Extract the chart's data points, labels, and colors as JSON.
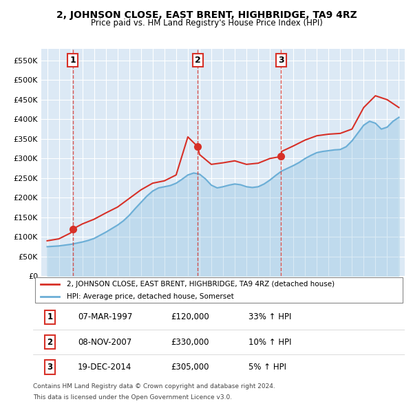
{
  "title": "2, JOHNSON CLOSE, EAST BRENT, HIGHBRIDGE, TA9 4RZ",
  "subtitle": "Price paid vs. HM Land Registry's House Price Index (HPI)",
  "legend_line1": "2, JOHNSON CLOSE, EAST BRENT, HIGHBRIDGE, TA9 4RZ (detached house)",
  "legend_line2": "HPI: Average price, detached house, Somerset",
  "footer1": "Contains HM Land Registry data © Crown copyright and database right 2024.",
  "footer2": "This data is licensed under the Open Government Licence v3.0.",
  "sales": [
    {
      "num": 1,
      "date": "07-MAR-1997",
      "price": 120000,
      "hpi_pct": "33%",
      "year": 1997.18
    },
    {
      "num": 2,
      "date": "08-NOV-2007",
      "price": 330000,
      "hpi_pct": "10%",
      "year": 2007.85
    },
    {
      "num": 3,
      "date": "19-DEC-2014",
      "price": 305000,
      "hpi_pct": "5%",
      "year": 2014.96
    }
  ],
  "ylim": [
    0,
    580000
  ],
  "yticks": [
    0,
    50000,
    100000,
    150000,
    200000,
    250000,
    300000,
    350000,
    400000,
    450000,
    500000,
    550000
  ],
  "ytick_labels": [
    "£0",
    "£50K",
    "£100K",
    "£150K",
    "£200K",
    "£250K",
    "£300K",
    "£350K",
    "£400K",
    "£450K",
    "£500K",
    "£550K"
  ],
  "xlim_start": 1994.5,
  "xlim_end": 2025.5,
  "hpi_color": "#6baed6",
  "property_color": "#d73027",
  "bg_color": "#dce9f5",
  "grid_color": "#ffffff",
  "hpi_years": [
    1995,
    1995.5,
    1996,
    1996.5,
    1997,
    1997.5,
    1998,
    1998.5,
    1999,
    1999.5,
    2000,
    2000.5,
    2001,
    2001.5,
    2002,
    2002.5,
    2003,
    2003.5,
    2004,
    2004.5,
    2005,
    2005.5,
    2006,
    2006.5,
    2007,
    2007.5,
    2008,
    2008.5,
    2009,
    2009.5,
    2010,
    2010.5,
    2011,
    2011.5,
    2012,
    2012.5,
    2013,
    2013.5,
    2014,
    2014.5,
    2015,
    2015.5,
    2016,
    2016.5,
    2017,
    2017.5,
    2018,
    2018.5,
    2019,
    2019.5,
    2020,
    2020.5,
    2021,
    2021.5,
    2022,
    2022.5,
    2023,
    2023.5,
    2024,
    2024.5,
    2025
  ],
  "hpi_values": [
    75000,
    76000,
    77000,
    79000,
    81000,
    84000,
    87000,
    91000,
    96000,
    104000,
    112000,
    121000,
    130000,
    141000,
    155000,
    172000,
    188000,
    204000,
    217000,
    225000,
    228000,
    231000,
    237000,
    247000,
    258000,
    263000,
    260000,
    248000,
    232000,
    225000,
    228000,
    232000,
    235000,
    233000,
    228000,
    226000,
    228000,
    235000,
    245000,
    257000,
    268000,
    275000,
    282000,
    290000,
    300000,
    308000,
    315000,
    318000,
    320000,
    322000,
    323000,
    330000,
    345000,
    365000,
    385000,
    395000,
    390000,
    375000,
    380000,
    395000,
    405000
  ],
  "prop_years": [
    1995,
    1996,
    1997,
    1997.18,
    1998,
    1999,
    2000,
    2001,
    2002,
    2003,
    2004,
    2005,
    2006,
    2007,
    2007.85,
    2008,
    2009,
    2010,
    2011,
    2012,
    2013,
    2014,
    2014.96,
    2015,
    2016,
    2017,
    2018,
    2019,
    2020,
    2021,
    2022,
    2023,
    2024,
    2025
  ],
  "prop_values": [
    90000,
    95000,
    110000,
    120000,
    133000,
    145000,
    161000,
    176000,
    198000,
    220000,
    237000,
    243000,
    258000,
    355000,
    330000,
    310000,
    285000,
    289000,
    294000,
    285000,
    288000,
    300000,
    305000,
    318000,
    332000,
    347000,
    358000,
    362000,
    364000,
    375000,
    430000,
    460000,
    450000,
    430000
  ]
}
